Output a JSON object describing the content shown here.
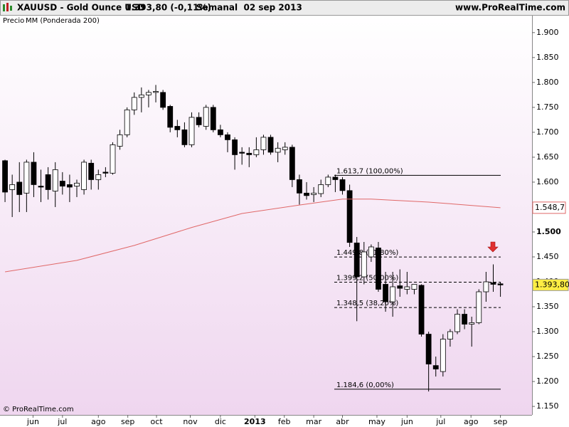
{
  "chart_data": {
    "type": "candlestick",
    "title": "XAUUSD - Gold Ounce USD",
    "quote": "1.393,80 (-0,11%)",
    "period": "Semanal  02 sep 2013",
    "source": "www.ProRealTime.com",
    "copyright": "© ProRealTime.com",
    "series": [
      {
        "name": "Precio",
        "open": [
          1643,
          1585,
          1600,
          1578,
          1640,
          1592,
          1615,
          1582,
          1602,
          1595,
          1592,
          1585,
          1638,
          1605,
          1620,
          1618,
          1672,
          1695,
          1745,
          1770,
          1775,
          1780,
          1780,
          1752,
          1712,
          1705,
          1675,
          1730,
          1712,
          1750,
          1705,
          1695,
          1685,
          1660,
          1658,
          1655,
          1665,
          1690,
          1660,
          1665,
          1670,
          1605,
          1578,
          1575,
          1577,
          1595,
          1610,
          1605,
          1583,
          1478,
          1410,
          1450,
          1468,
          1395,
          1360,
          1392,
          1385,
          1385,
          1393,
          1295,
          1232,
          1220,
          1285,
          1300,
          1335,
          1315,
          1318,
          1380,
          1398,
          1396
        ],
        "high": [
          1645,
          1615,
          1640,
          1645,
          1660,
          1625,
          1630,
          1640,
          1620,
          1615,
          1605,
          1645,
          1645,
          1625,
          1630,
          1680,
          1705,
          1750,
          1780,
          1790,
          1785,
          1795,
          1785,
          1755,
          1725,
          1720,
          1740,
          1740,
          1755,
          1755,
          1715,
          1700,
          1690,
          1670,
          1670,
          1690,
          1695,
          1695,
          1680,
          1680,
          1675,
          1615,
          1600,
          1590,
          1605,
          1615,
          1615,
          1610,
          1595,
          1490,
          1480,
          1475,
          1480,
          1420,
          1420,
          1425,
          1420,
          1395,
          1395,
          1300,
          1250,
          1295,
          1305,
          1345,
          1345,
          1330,
          1385,
          1420,
          1435,
          1400
        ],
        "low": [
          1560,
          1530,
          1540,
          1540,
          1570,
          1560,
          1565,
          1550,
          1575,
          1560,
          1570,
          1575,
          1585,
          1585,
          1610,
          1615,
          1665,
          1690,
          1735,
          1740,
          1750,
          1760,
          1745,
          1700,
          1690,
          1670,
          1670,
          1710,
          1705,
          1700,
          1690,
          1660,
          1625,
          1635,
          1630,
          1650,
          1655,
          1655,
          1640,
          1655,
          1590,
          1555,
          1565,
          1560,
          1570,
          1590,
          1580,
          1575,
          1470,
          1321,
          1395,
          1440,
          1380,
          1340,
          1330,
          1370,
          1375,
          1375,
          1290,
          1180,
          1210,
          1210,
          1270,
          1295,
          1305,
          1270,
          1315,
          1360,
          1380,
          1370
        ],
        "close": [
          1580,
          1595,
          1575,
          1640,
          1595,
          1590,
          1585,
          1625,
          1592,
          1590,
          1598,
          1640,
          1605,
          1615,
          1618,
          1675,
          1695,
          1745,
          1770,
          1775,
          1780,
          1782,
          1750,
          1710,
          1705,
          1675,
          1730,
          1715,
          1750,
          1705,
          1695,
          1685,
          1655,
          1658,
          1655,
          1665,
          1690,
          1660,
          1668,
          1670,
          1605,
          1578,
          1573,
          1578,
          1595,
          1610,
          1605,
          1583,
          1479,
          1410,
          1460,
          1470,
          1385,
          1360,
          1390,
          1387,
          1390,
          1395,
          1295,
          1235,
          1225,
          1285,
          1300,
          1335,
          1315,
          1318,
          1380,
          1400,
          1395,
          1393.8
        ],
        "close_label": "1.393,80",
        "up_color": "#ffffff",
        "down_color": "#000000"
      }
    ],
    "ma": {
      "name": "MM (Ponderada 200)",
      "color": "#e06868",
      "x": [
        0,
        10,
        18,
        26,
        33,
        41,
        47,
        51,
        59,
        69
      ],
      "values": [
        1420,
        1443,
        1473,
        1509,
        1537,
        1554,
        1566,
        1566,
        1560,
        1548.7
      ],
      "last_label": "1.548,7"
    },
    "fib": [
      {
        "value": 1613.7,
        "label": "1.613,7 (100,00%)",
        "dashed": false
      },
      {
        "value": 1449.8,
        "label": "1.449,8 (61,80%)",
        "dashed": true
      },
      {
        "value": 1399.2,
        "label": "1.399,2 (50,00%)",
        "dashed": true
      },
      {
        "value": 1348.5,
        "label": "1.348,5 (38,20%)",
        "dashed": true
      },
      {
        "value": 1184.6,
        "label": "1.184,6 (0,00%)",
        "dashed": false
      }
    ],
    "ylim": [
      1133,
      1934
    ],
    "yticks": [
      {
        "value": 1150,
        "label": "1.150"
      },
      {
        "value": 1200,
        "label": "1.200"
      },
      {
        "value": 1250,
        "label": "1.250"
      },
      {
        "value": 1300,
        "label": "1.300"
      },
      {
        "value": 1350,
        "label": "1.350"
      },
      {
        "value": 1400,
        "label": "1.400"
      },
      {
        "value": 1450,
        "label": "1.450"
      },
      {
        "value": 1500,
        "label": "1.500"
      },
      {
        "value": 1550,
        "label": "1.550"
      },
      {
        "value": 1600,
        "label": "1.600"
      },
      {
        "value": 1650,
        "label": "1.650"
      },
      {
        "value": 1700,
        "label": "1.700"
      },
      {
        "value": 1750,
        "label": "1.750"
      },
      {
        "value": 1800,
        "label": "1.800"
      },
      {
        "value": 1850,
        "label": "1.850"
      },
      {
        "value": 1900,
        "label": "1.900"
      }
    ],
    "xlim": [
      -0.7,
      73.4
    ],
    "xticks": [
      {
        "value": 3.9,
        "label": "jun"
      },
      {
        "value": 8.0,
        "label": "jul"
      },
      {
        "value": 13.0,
        "label": "ago"
      },
      {
        "value": 17.1,
        "label": "sep"
      },
      {
        "value": 21.1,
        "label": "oct"
      },
      {
        "value": 25.8,
        "label": "nov"
      },
      {
        "value": 30,
        "label": "dic"
      },
      {
        "value": 34.8,
        "label": "2013"
      },
      {
        "value": 38.9,
        "label": "feb"
      },
      {
        "value": 43,
        "label": "mar"
      },
      {
        "value": 47,
        "label": "abr"
      },
      {
        "value": 51.8,
        "label": "may"
      },
      {
        "value": 56,
        "label": "jun"
      },
      {
        "value": 60.7,
        "label": "jul"
      },
      {
        "value": 64.9,
        "label": "ago"
      },
      {
        "value": 69,
        "label": "sep"
      }
    ]
  }
}
